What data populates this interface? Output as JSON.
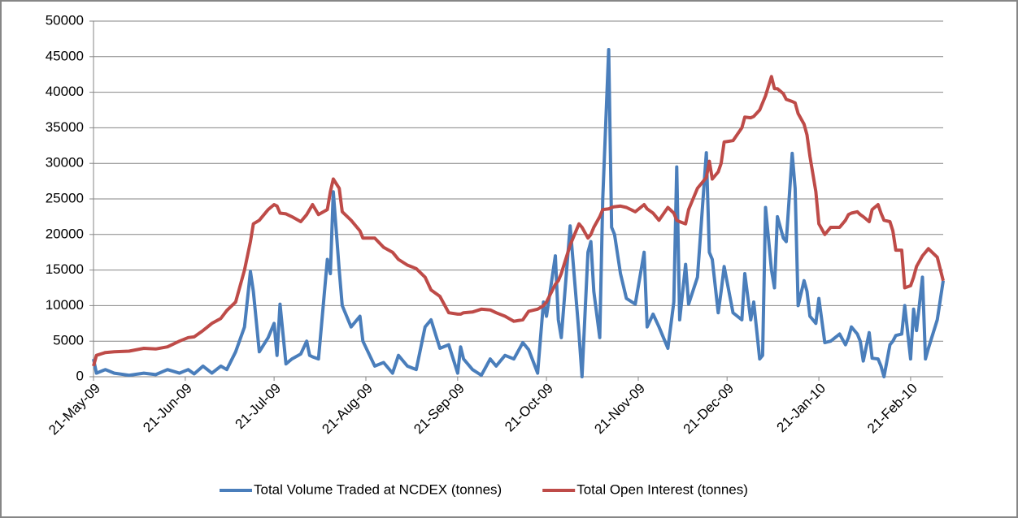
{
  "chart_data": {
    "type": "line",
    "x": [
      "2009-05-21",
      "2009-05-22",
      "2009-05-25",
      "2009-05-28",
      "2009-06-02",
      "2009-06-07",
      "2009-06-11",
      "2009-06-15",
      "2009-06-19",
      "2009-06-22",
      "2009-06-24",
      "2009-06-27",
      "2009-06-30",
      "2009-07-03",
      "2009-07-05",
      "2009-07-08",
      "2009-07-11",
      "2009-07-13",
      "2009-07-14",
      "2009-07-16",
      "2009-07-19",
      "2009-07-21",
      "2009-07-22",
      "2009-07-23",
      "2009-07-25",
      "2009-07-27",
      "2009-07-30",
      "2009-08-01",
      "2009-08-02",
      "2009-08-03",
      "2009-08-05",
      "2009-08-08",
      "2009-08-09",
      "2009-08-10",
      "2009-08-12",
      "2009-08-13",
      "2009-08-16",
      "2009-08-19",
      "2009-08-20",
      "2009-08-24",
      "2009-08-27",
      "2009-08-30",
      "2009-09-01",
      "2009-09-04",
      "2009-09-07",
      "2009-09-10",
      "2009-09-12",
      "2009-09-15",
      "2009-09-18",
      "2009-09-21",
      "2009-09-22",
      "2009-09-23",
      "2009-09-26",
      "2009-09-29",
      "2009-10-02",
      "2009-10-04",
      "2009-10-07",
      "2009-10-10",
      "2009-10-13",
      "2009-10-15",
      "2009-10-18",
      "2009-10-20",
      "2009-10-21",
      "2009-10-24",
      "2009-10-25",
      "2009-10-26",
      "2009-10-29",
      "2009-11-01",
      "2009-11-02",
      "2009-11-04",
      "2009-11-05",
      "2009-11-06",
      "2009-11-08",
      "2009-11-09",
      "2009-11-11",
      "2009-11-12",
      "2009-11-13",
      "2009-11-15",
      "2009-11-17",
      "2009-11-20",
      "2009-11-23",
      "2009-11-24",
      "2009-11-26",
      "2009-11-28",
      "2009-12-01",
      "2009-12-03",
      "2009-12-04",
      "2009-12-05",
      "2009-12-07",
      "2009-12-08",
      "2009-12-11",
      "2009-12-14",
      "2009-12-15",
      "2009-12-16",
      "2009-12-18",
      "2009-12-19",
      "2009-12-20",
      "2009-12-23",
      "2009-12-26",
      "2009-12-27",
      "2009-12-29",
      "2009-12-30",
      "2010-01-01",
      "2010-01-02",
      "2010-01-03",
      "2010-01-05",
      "2010-01-06",
      "2010-01-07",
      "2010-01-09",
      "2010-01-10",
      "2010-01-12",
      "2010-01-13",
      "2010-01-14",
      "2010-01-16",
      "2010-01-17",
      "2010-01-18",
      "2010-01-20",
      "2010-01-21",
      "2010-01-23",
      "2010-01-25",
      "2010-01-28",
      "2010-01-30",
      "2010-01-31",
      "2010-02-01",
      "2010-02-03",
      "2010-02-04",
      "2010-02-05",
      "2010-02-07",
      "2010-02-08",
      "2010-02-10",
      "2010-02-11",
      "2010-02-12",
      "2010-02-14",
      "2010-02-15",
      "2010-02-16",
      "2010-02-18",
      "2010-02-19",
      "2010-02-21",
      "2010-02-22",
      "2010-02-23",
      "2010-02-25",
      "2010-02-26",
      "2010-02-27",
      "2010-03-02",
      "2010-03-04"
    ],
    "series": [
      {
        "name": "Total Volume Traded at NCDEX (tonnes)",
        "color": "#4a7ebb",
        "values": [
          2500,
          500,
          1000,
          500,
          200,
          500,
          300,
          1000,
          500,
          1000,
          400,
          1500,
          500,
          1500,
          1000,
          3500,
          7000,
          14800,
          12000,
          3500,
          5500,
          7500,
          3000,
          10200,
          1800,
          2500,
          3200,
          5000,
          3000,
          2800,
          2500,
          16500,
          14500,
          26000,
          15000,
          10000,
          7000,
          8500,
          5000,
          1500,
          2000,
          500,
          3000,
          1500,
          1000,
          7000,
          8000,
          4000,
          4500,
          500,
          4200,
          2500,
          1000,
          200,
          2500,
          1500,
          3000,
          2500,
          4800,
          3800,
          500,
          10500,
          8500,
          17000,
          8000,
          5500,
          21200,
          6000,
          0,
          17500,
          19000,
          12000,
          5500,
          25000,
          46000,
          21000,
          20000,
          14500,
          11000,
          10200,
          17500,
          7000,
          8800,
          7000,
          4000,
          10500,
          29500,
          8000,
          15800,
          10200,
          14000,
          31500,
          17500,
          16500,
          9000,
          12000,
          15500,
          9000,
          8000,
          14500,
          8000,
          10500,
          2500,
          3000,
          23800,
          15000,
          12500,
          22500,
          19500,
          19000,
          31400,
          26500,
          10000,
          13500,
          12000,
          8500,
          7500,
          11000,
          4800,
          5000,
          6000,
          4500,
          5500,
          7000,
          6000,
          5000,
          2200,
          6200,
          2600,
          2500,
          1500,
          0,
          4500,
          5000,
          5800,
          6000,
          10000,
          2500,
          9500,
          6500,
          14000,
          2500,
          4000,
          8000,
          13500
        ]
      },
      {
        "name": "Total Open Interest (tonnes)",
        "color": "#be4b48",
        "values": [
          1500,
          3000,
          3400,
          3500,
          3600,
          4000,
          3900,
          4200,
          5000,
          5500,
          5600,
          6500,
          7500,
          8200,
          9300,
          10500,
          15000,
          19000,
          21500,
          22000,
          23500,
          24200,
          24000,
          23000,
          22900,
          22500,
          21800,
          22800,
          23500,
          24200,
          22800,
          23500,
          26000,
          27800,
          26500,
          23200,
          22000,
          20500,
          19500,
          19500,
          18200,
          17500,
          16500,
          15700,
          15200,
          14000,
          12200,
          11300,
          9000,
          8800,
          8800,
          9000,
          9100,
          9500,
          9400,
          9000,
          8500,
          7800,
          8000,
          9200,
          9500,
          10000,
          10500,
          13000,
          13500,
          14500,
          18500,
          21500,
          21000,
          19500,
          20000,
          21000,
          22500,
          23500,
          23600,
          23800,
          23900,
          24000,
          23800,
          23200,
          24200,
          23600,
          23000,
          22000,
          23800,
          23000,
          22000,
          21800,
          21500,
          23500,
          26500,
          28000,
          30300,
          27800,
          28800,
          30000,
          33000,
          33200,
          35000,
          36500,
          36400,
          36600,
          37500,
          38500,
          39500,
          42200,
          40500,
          40500,
          39800,
          39000,
          38700,
          38500,
          37000,
          35500,
          34000,
          31000,
          26000,
          21500,
          20000,
          21000,
          21000,
          22000,
          22800,
          23000,
          23200,
          22800,
          22500,
          21800,
          23500,
          24200,
          23000,
          22000,
          21800,
          20500,
          17800,
          17800,
          12500,
          12800,
          14000,
          15500,
          17000,
          17500,
          18000,
          16800,
          13500
        ]
      }
    ],
    "xlim": [
      "2009-05-21",
      "2010-03-04"
    ],
    "xticks": [
      {
        "value": "2009-05-21",
        "label": "21-May-09"
      },
      {
        "value": "2009-06-21",
        "label": "21-Jun-09"
      },
      {
        "value": "2009-07-21",
        "label": "21-Jul-09"
      },
      {
        "value": "2009-08-21",
        "label": "21-Aug-09"
      },
      {
        "value": "2009-09-21",
        "label": "21-Sep-09"
      },
      {
        "value": "2009-10-21",
        "label": "21-Oct-09"
      },
      {
        "value": "2009-11-21",
        "label": "21-Nov-09"
      },
      {
        "value": "2009-12-21",
        "label": "21-Dec-09"
      },
      {
        "value": "2010-01-21",
        "label": "21-Jan-10"
      },
      {
        "value": "2010-02-21",
        "label": "21-Feb-10"
      }
    ],
    "ylim": [
      0,
      50000
    ],
    "yticks": [
      0,
      5000,
      10000,
      15000,
      20000,
      25000,
      30000,
      35000,
      40000,
      45000,
      50000
    ],
    "grid": true,
    "legend": "bottom"
  }
}
